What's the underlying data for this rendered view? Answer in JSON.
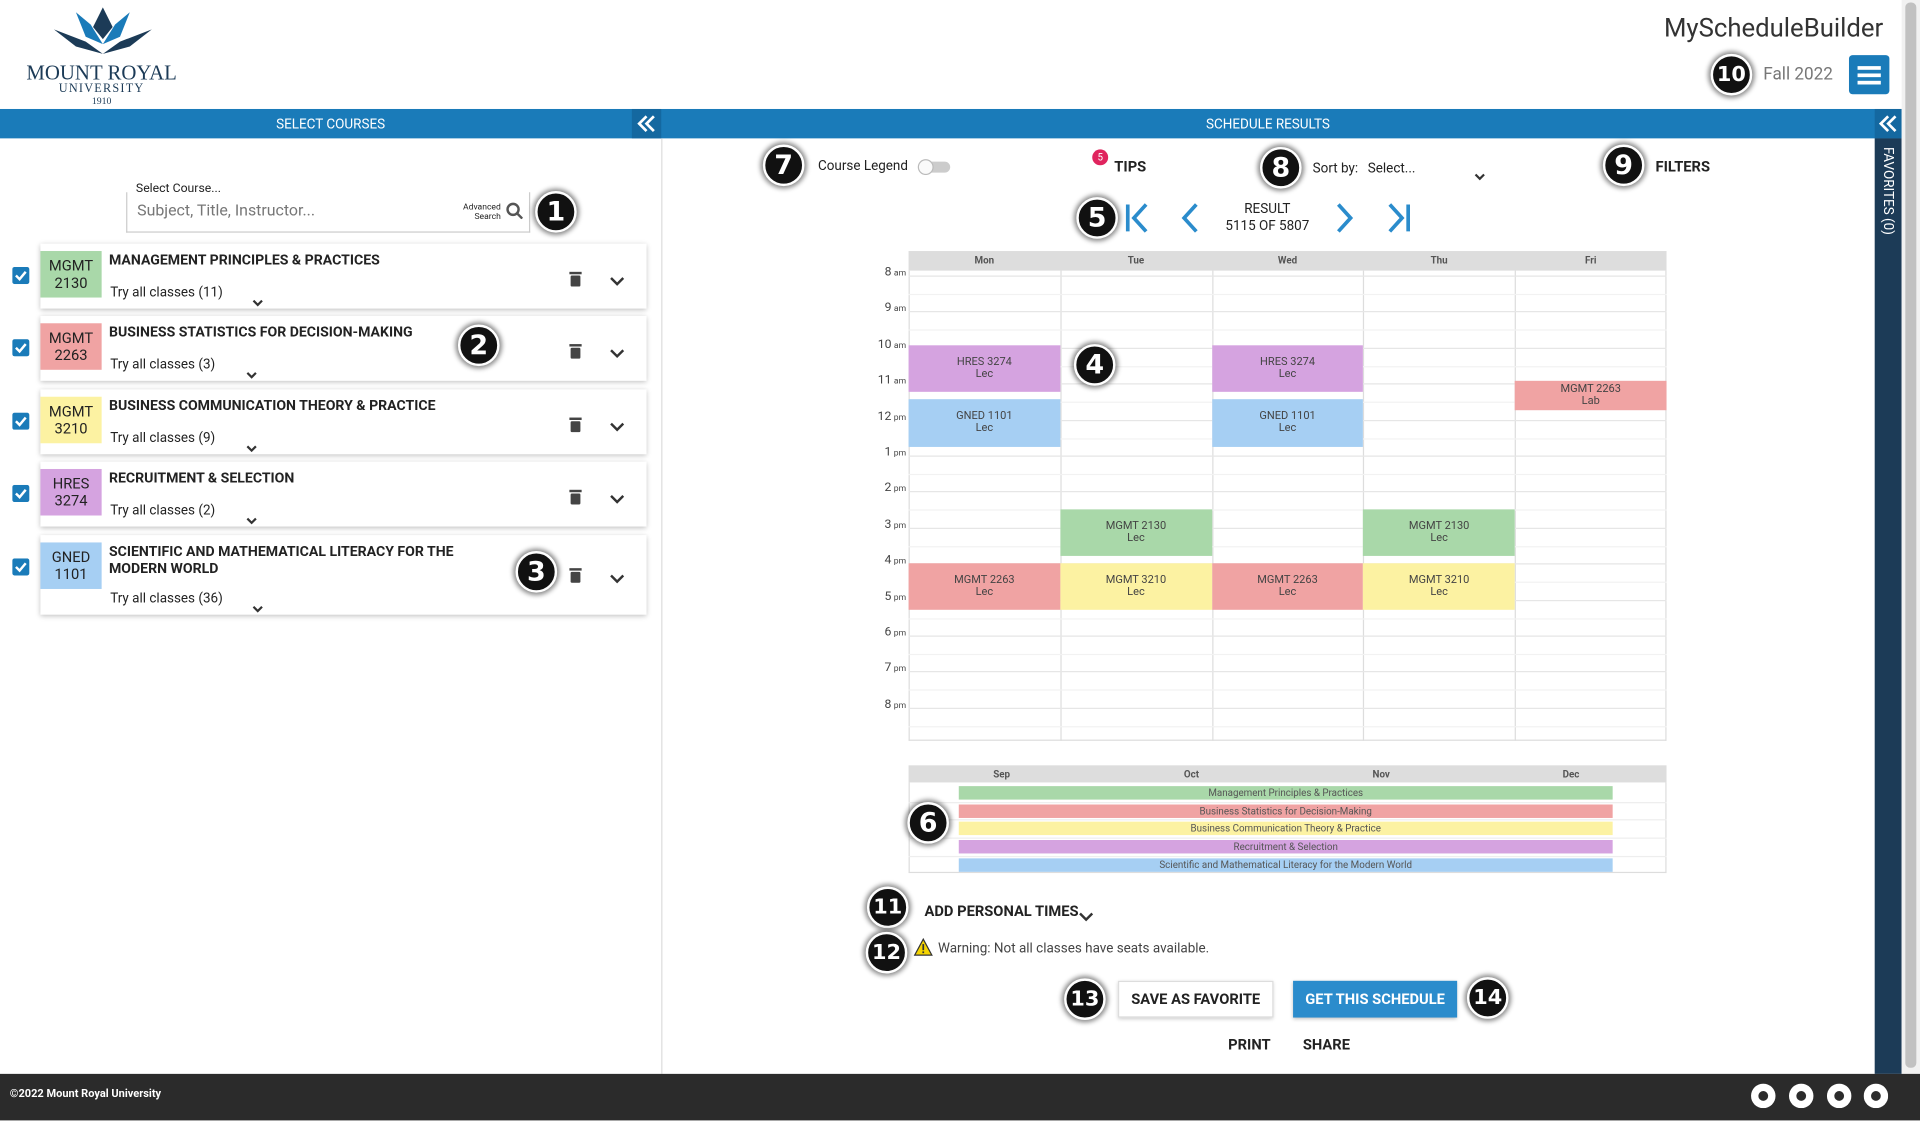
{
  "header": {
    "logo": [
      "MOUNT ROYAL",
      "UNIVERSITY",
      "1910"
    ],
    "app_title": "MyScheduleBuilder",
    "term": "Fall 2022"
  },
  "select_courses": {
    "title": "SELECT COURSES",
    "search_label": "Select Course...",
    "search_placeholder": "Subject, Title, Instructor...",
    "advanced_search": [
      "Advanced",
      "Search"
    ],
    "courses": [
      {
        "subject": "MGMT",
        "number": "2130",
        "title": "MANAGEMENT PRINCIPLES & PRACTICES",
        "try": "Try all classes (11)",
        "color": "#a9d8a9"
      },
      {
        "subject": "MGMT",
        "number": "2263",
        "title": "BUSINESS STATISTICS FOR DECISION-MAKING",
        "try": "Try all classes (3)",
        "color": "#f0a3a3"
      },
      {
        "subject": "MGMT",
        "number": "3210",
        "title": "BUSINESS COMMUNICATION THEORY & PRACTICE",
        "try": "Try all classes (9)",
        "color": "#fcf2a2"
      },
      {
        "subject": "HRES",
        "number": "3274",
        "title": "RECRUITMENT & SELECTION",
        "try": "Try all classes (2)",
        "color": "#d5a3e0"
      },
      {
        "subject": "GNED",
        "number": "1101",
        "title": "SCIENTIFIC AND MATHEMATICAL LITERACY FOR THE MODERN WORLD",
        "try": "Try all classes (36)",
        "color": "#a6cff3"
      }
    ]
  },
  "schedule_results": {
    "title": "SCHEDULE RESULTS",
    "course_legend": "Course Legend",
    "tips_count": "5",
    "tips": "TIPS",
    "sort_label": "Sort by:",
    "sort_value": "Select...",
    "filters": "FILTERS",
    "result_label": "RESULT",
    "result_count": "5115 OF 5807"
  },
  "calendar": {
    "days": [
      "Mon",
      "Tue",
      "Wed",
      "Thu",
      "Fri"
    ],
    "hours": [
      [
        "8",
        "am"
      ],
      [
        "9",
        "am"
      ],
      [
        "10",
        "am"
      ],
      [
        "11",
        "am"
      ],
      [
        "12",
        "pm"
      ],
      [
        "1",
        "pm"
      ],
      [
        "2",
        "pm"
      ],
      [
        "3",
        "pm"
      ],
      [
        "4",
        "pm"
      ],
      [
        "5",
        "pm"
      ],
      [
        "6",
        "pm"
      ],
      [
        "7",
        "pm"
      ],
      [
        "8",
        "pm"
      ]
    ],
    "time_range": [
      8,
      21
    ],
    "events": [
      {
        "course": "HRES 3274",
        "kind": "Lec",
        "day": 0,
        "start": 10,
        "end": 11.3,
        "color": "#d5a3e0"
      },
      {
        "course": "GNED 1101",
        "kind": "Lec",
        "day": 0,
        "start": 11.5,
        "end": 12.83,
        "color": "#a6cff3"
      },
      {
        "course": "MGMT 2263",
        "kind": "Lec",
        "day": 0,
        "start": 16.05,
        "end": 17.35,
        "color": "#f0a3a3"
      },
      {
        "course": "MGMT 2130",
        "kind": "Lec",
        "day": 1,
        "start": 14.55,
        "end": 15.85,
        "color": "#a9d8a9"
      },
      {
        "course": "MGMT 3210",
        "kind": "Lec",
        "day": 1,
        "start": 16.05,
        "end": 17.35,
        "color": "#fcf2a2"
      },
      {
        "course": "HRES 3274",
        "kind": "Lec",
        "day": 2,
        "start": 10,
        "end": 11.3,
        "color": "#d5a3e0"
      },
      {
        "course": "GNED 1101",
        "kind": "Lec",
        "day": 2,
        "start": 11.5,
        "end": 12.83,
        "color": "#a6cff3"
      },
      {
        "course": "MGMT 2263",
        "kind": "Lec",
        "day": 2,
        "start": 16.05,
        "end": 17.35,
        "color": "#f0a3a3"
      },
      {
        "course": "MGMT 2130",
        "kind": "Lec",
        "day": 3,
        "start": 14.55,
        "end": 15.85,
        "color": "#a9d8a9"
      },
      {
        "course": "MGMT 3210",
        "kind": "Lec",
        "day": 3,
        "start": 16.05,
        "end": 17.35,
        "color": "#fcf2a2"
      },
      {
        "course": "MGMT 2263",
        "kind": "Lab",
        "day": 4,
        "start": 11.0,
        "end": 11.8,
        "color": "#f0a3a3"
      }
    ]
  },
  "term": {
    "months": [
      "Sep",
      "Oct",
      "Nov",
      "Dec"
    ],
    "bars": [
      {
        "name": "Management Principles & Practices",
        "color": "#a9d8a9"
      },
      {
        "name": "Business Statistics for Decision-Making",
        "color": "#f0a3a3"
      },
      {
        "name": "Business Communication Theory & Practice",
        "color": "#fcf2a2"
      },
      {
        "name": "Recruitment & Selection",
        "color": "#d5a3e0"
      },
      {
        "name": "Scientific and Mathematical Literacy for the Modern World",
        "color": "#a6cff3"
      }
    ]
  },
  "actions": {
    "add_personal_times": "ADD PERSONAL TIMES",
    "warning": "Warning: Not all classes have seats available.",
    "save_favorite": "SAVE AS FAVORITE",
    "get_schedule": "GET THIS SCHEDULE",
    "print": "PRINT",
    "share": "SHARE"
  },
  "favorites": "FAVORITES (0)",
  "footer": "©2022 Mount Royal University",
  "callouts": [
    "1",
    "2",
    "3",
    "4",
    "5",
    "6",
    "7",
    "8",
    "9",
    "10",
    "11",
    "12",
    "13",
    "14"
  ]
}
